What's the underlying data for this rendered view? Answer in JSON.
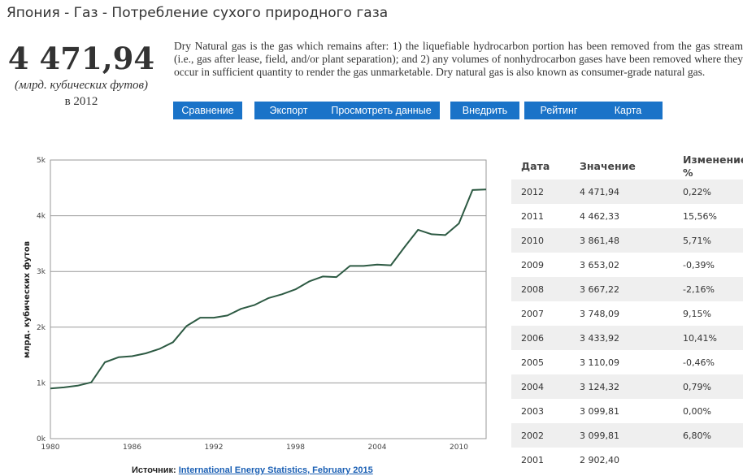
{
  "header": {
    "title": "Япония - Газ - Потребление сухого природного газа"
  },
  "summary": {
    "value": "4 471,94",
    "unit": "(млрд. кубических футов)",
    "year": "в 2012"
  },
  "description": "Dry Natural gas is the gas which remains after: 1) the liquefiable hydrocarbon portion has been removed from the gas stream (i.e., gas after lease, field, and/or plant separation); and 2) any volumes of nonhydrocarbon gases have been removed where they occur in sufficient quantity to render the gas unmarketable. Dry natural gas is also known as consumer-grade natural gas.",
  "buttons": {
    "compare": "Сравнение",
    "export": "Экспорт",
    "view_data": "Просмотреть данные",
    "embed": "Внедрить",
    "rating": "Рейтинг",
    "map": "Карта"
  },
  "chart_data": {
    "type": "line",
    "ylabel": "млрд. кубических футов",
    "xlim": [
      1980,
      2012
    ],
    "ylim": [
      0,
      5000
    ],
    "x_ticks": [
      1980,
      1986,
      1992,
      1998,
      2004,
      2010
    ],
    "y_ticks": [
      {
        "value": 0,
        "label": "0k"
      },
      {
        "value": 1000,
        "label": "1k"
      },
      {
        "value": 2000,
        "label": "2k"
      },
      {
        "value": 3000,
        "label": "3k"
      },
      {
        "value": 4000,
        "label": "4k"
      },
      {
        "value": 5000,
        "label": "5k"
      }
    ],
    "grid": true,
    "line_color": "#2d5a43",
    "series": [
      {
        "x": [
          1980,
          1981,
          1982,
          1983,
          1984,
          1985,
          1986,
          1987,
          1988,
          1989,
          1990,
          1991,
          1992,
          1993,
          1994,
          1995,
          1996,
          1997,
          1998,
          1999,
          2000,
          2001,
          2002,
          2003,
          2004,
          2005,
          2006,
          2007,
          2008,
          2009,
          2010,
          2011,
          2012
        ],
        "y": [
          900,
          920,
          950,
          1010,
          1370,
          1460,
          1480,
          1530,
          1610,
          1730,
          2020,
          2170,
          2170,
          2210,
          2330,
          2400,
          2520,
          2590,
          2680,
          2820,
          2910,
          2900,
          3099.81,
          3099.81,
          3124.32,
          3110.09,
          3433.92,
          3748.09,
          3667.22,
          3653.02,
          3861.48,
          4462.33,
          4471.94
        ]
      }
    ]
  },
  "source": {
    "label": "Источник:",
    "link": "International Energy Statistics, February 2015"
  },
  "table": {
    "headers": {
      "date": "Дата",
      "value": "Значение",
      "change_line1": "Изменение",
      "change_line2": "%"
    },
    "rows": [
      {
        "date": "2012",
        "value": "4 471,94",
        "change": "0,22%"
      },
      {
        "date": "2011",
        "value": "4 462,33",
        "change": "15,56%"
      },
      {
        "date": "2010",
        "value": "3 861,48",
        "change": "5,71%"
      },
      {
        "date": "2009",
        "value": "3 653,02",
        "change": "-0,39%"
      },
      {
        "date": "2008",
        "value": "3 667,22",
        "change": "-2,16%"
      },
      {
        "date": "2007",
        "value": "3 748,09",
        "change": "9,15%"
      },
      {
        "date": "2006",
        "value": "3 433,92",
        "change": "10,41%"
      },
      {
        "date": "2005",
        "value": "3 110,09",
        "change": "-0,46%"
      },
      {
        "date": "2004",
        "value": "3 124,32",
        "change": "0,79%"
      },
      {
        "date": "2003",
        "value": "3 099,81",
        "change": "0,00%"
      },
      {
        "date": "2002",
        "value": "3 099,81",
        "change": "6,80%"
      },
      {
        "date": "2001",
        "value": "2 902,40",
        "change": ""
      }
    ]
  }
}
